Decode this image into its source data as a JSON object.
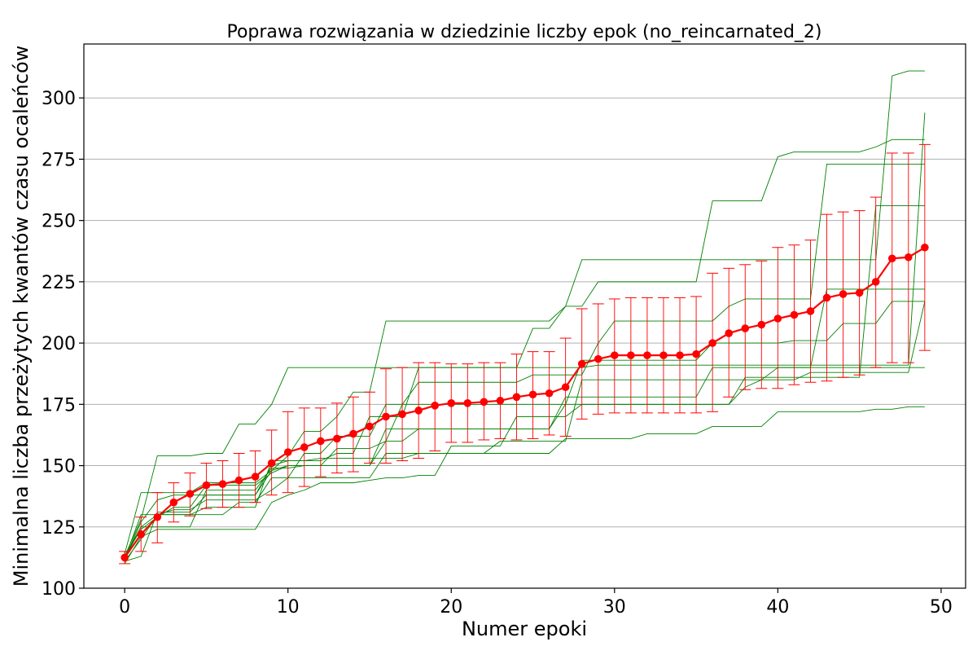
{
  "chart_data": {
    "type": "line",
    "title": "Poprawa rozwiązania w dziedzinie liczby epok (no_reincarnated_2)",
    "xlabel": "Numer epoki",
    "ylabel": "Minimalna liczba przeżytych kwantów czasu ocaleńców",
    "xlim": [
      -2.5,
      51.5
    ],
    "ylim": [
      100,
      322
    ],
    "x_ticks": [
      0,
      10,
      20,
      30,
      40,
      50
    ],
    "y_ticks": [
      100,
      125,
      150,
      175,
      200,
      225,
      250,
      275,
      300
    ],
    "grid": "horizontal",
    "colors": {
      "mean": "#ff0000",
      "runs": "#008000",
      "grid": "#b0b0b0"
    },
    "x": [
      0,
      1,
      2,
      3,
      4,
      5,
      6,
      7,
      8,
      9,
      10,
      11,
      12,
      13,
      14,
      15,
      16,
      17,
      18,
      19,
      20,
      21,
      22,
      23,
      24,
      25,
      26,
      27,
      28,
      29,
      30,
      31,
      32,
      33,
      34,
      35,
      36,
      37,
      38,
      39,
      40,
      41,
      42,
      43,
      44,
      45,
      46,
      47,
      48,
      49
    ],
    "mean": {
      "values": [
        112.5,
        122,
        129,
        135,
        138.5,
        142,
        142.5,
        144,
        145.5,
        151,
        155.5,
        157.5,
        160,
        161,
        163,
        166,
        170,
        171,
        172.5,
        174.5,
        175.5,
        175.5,
        176,
        176.5,
        178,
        179,
        179.5,
        182,
        191.5,
        193.5,
        195,
        195,
        195,
        195,
        195,
        195.5,
        200,
        204,
        206,
        207.5,
        210,
        211.5,
        213,
        218.5,
        220,
        220.5,
        225,
        234.5,
        235,
        239
      ],
      "err_low": [
        110,
        115,
        118.5,
        127,
        129.5,
        132.5,
        133,
        133,
        135,
        138,
        139,
        141.5,
        145.5,
        147,
        147.5,
        151,
        151,
        152,
        153,
        156,
        159.5,
        159.5,
        160.5,
        161,
        160.5,
        161,
        162.5,
        162,
        169,
        171,
        171.5,
        171.5,
        171.5,
        171.5,
        171.5,
        171.5,
        172,
        178,
        181,
        181.5,
        181.5,
        183,
        184,
        184.5,
        186,
        187,
        190,
        192,
        192,
        197
      ],
      "err_high": [
        115,
        129,
        139,
        143,
        147,
        151,
        152,
        155,
        156,
        164.5,
        172,
        173.5,
        173.5,
        175.5,
        178,
        180,
        189.5,
        190,
        192,
        192,
        191.5,
        191.5,
        192,
        192,
        195.5,
        196.5,
        196.5,
        202,
        214,
        216,
        218,
        218.5,
        218.5,
        218.5,
        218.5,
        219,
        228.5,
        230.5,
        232,
        233.5,
        239,
        240,
        242,
        252.5,
        253.5,
        254,
        259.5,
        277.5,
        277.5,
        281
      ]
    },
    "runs": [
      [
        114,
        139,
        139,
        139,
        139,
        143,
        143,
        143,
        143,
        148,
        154,
        164,
        164,
        170,
        180,
        180,
        209,
        209,
        209,
        209,
        209,
        209,
        209,
        209,
        209,
        209,
        209,
        215,
        234,
        234,
        234,
        234,
        234,
        234,
        234,
        234,
        234,
        234,
        234,
        234,
        234,
        234,
        234,
        234,
        234,
        234,
        234,
        309,
        311,
        311
      ],
      [
        113,
        128,
        154,
        154,
        154,
        155,
        155,
        167,
        167,
        175,
        190,
        190,
        190,
        190,
        190,
        190,
        190,
        190,
        190,
        190,
        190,
        190,
        190,
        190,
        190,
        190,
        190,
        190,
        190,
        191,
        191,
        191,
        191,
        191,
        191,
        191,
        191,
        191,
        191,
        191,
        191,
        191,
        191,
        191,
        191,
        191,
        191,
        191,
        191,
        294
      ],
      [
        112,
        127,
        136,
        138,
        138,
        138,
        138,
        138,
        138,
        150,
        152,
        152,
        152,
        155,
        155,
        170,
        170,
        170,
        190,
        190,
        190,
        190,
        190,
        190,
        190,
        206,
        206,
        215,
        215,
        225,
        225,
        225,
        225,
        225,
        225,
        225,
        258,
        258,
        258,
        258,
        276,
        278,
        278,
        278,
        278,
        278,
        280,
        283,
        283,
        283
      ],
      [
        111,
        113,
        131,
        131,
        131,
        138,
        138,
        138,
        138,
        148,
        150,
        150,
        150,
        150,
        150,
        150,
        160,
        175,
        184,
        184,
        184,
        184,
        184,
        184,
        184,
        187,
        187,
        187,
        187,
        200,
        209,
        209,
        209,
        209,
        209,
        209,
        209,
        215,
        218,
        218,
        218,
        218,
        218,
        273,
        273,
        273,
        273,
        273,
        273,
        273
      ],
      [
        112,
        125,
        125,
        125,
        125,
        140,
        140,
        140,
        140,
        149,
        149,
        150,
        150,
        150,
        150,
        150,
        165,
        165,
        165,
        165,
        165,
        165,
        165,
        165,
        165,
        165,
        165,
        178,
        178,
        178,
        178,
        178,
        178,
        178,
        178,
        178,
        190,
        190,
        190,
        190,
        190,
        190,
        190,
        222,
        222,
        222,
        222,
        222,
        222,
        222
      ],
      [
        113,
        125,
        130,
        130,
        130,
        130,
        130,
        135,
        135,
        145,
        145,
        145,
        145,
        145,
        145,
        145,
        155,
        155,
        155,
        155,
        155,
        155,
        155,
        155,
        155,
        155,
        155,
        161,
        161,
        161,
        161,
        161,
        163,
        163,
        163,
        163,
        166,
        166,
        166,
        166,
        172,
        172,
        172,
        172,
        172,
        172,
        173,
        173,
        174,
        174
      ],
      [
        110,
        121,
        124,
        124,
        124,
        124,
        124,
        124,
        124,
        135,
        138,
        140,
        143,
        143,
        143,
        144,
        145,
        145,
        146,
        146,
        158,
        158,
        158,
        158,
        170,
        170,
        170,
        170,
        175,
        175,
        175,
        175,
        175,
        175,
        175,
        175,
        175,
        175,
        182,
        185,
        185,
        185,
        188,
        188,
        188,
        188,
        188,
        188,
        188,
        217
      ],
      [
        111,
        120,
        130,
        132,
        132,
        136,
        136,
        136,
        136,
        140,
        145,
        155,
        155,
        162,
        162,
        162,
        175,
        175,
        175,
        175,
        175,
        175,
        175,
        175,
        175,
        175,
        175,
        175,
        193,
        193,
        193,
        193,
        193,
        193,
        193,
        193,
        200,
        200,
        200,
        200,
        200,
        201,
        201,
        201,
        208,
        208,
        208,
        217,
        217,
        217
      ],
      [
        113,
        124,
        129,
        133,
        133,
        142,
        142,
        142,
        142,
        147,
        150,
        150,
        150,
        157,
        157,
        157,
        160,
        160,
        165,
        165,
        165,
        165,
        165,
        165,
        165,
        165,
        165,
        175,
        175,
        175,
        175,
        175,
        175,
        175,
        175,
        175,
        175,
        175,
        186,
        186,
        186,
        186,
        186,
        186,
        186,
        186,
        256,
        256,
        256,
        256
      ],
      [
        112,
        130,
        130,
        130,
        130,
        133,
        133,
        133,
        133,
        152,
        152,
        152,
        153,
        153,
        153,
        153,
        153,
        153,
        155,
        155,
        155,
        155,
        155,
        160,
        160,
        160,
        160,
        160,
        185,
        185,
        185,
        185,
        185,
        185,
        185,
        185,
        185,
        185,
        185,
        185,
        190,
        190,
        190,
        190,
        190,
        190,
        190,
        190,
        190,
        190
      ]
    ]
  }
}
